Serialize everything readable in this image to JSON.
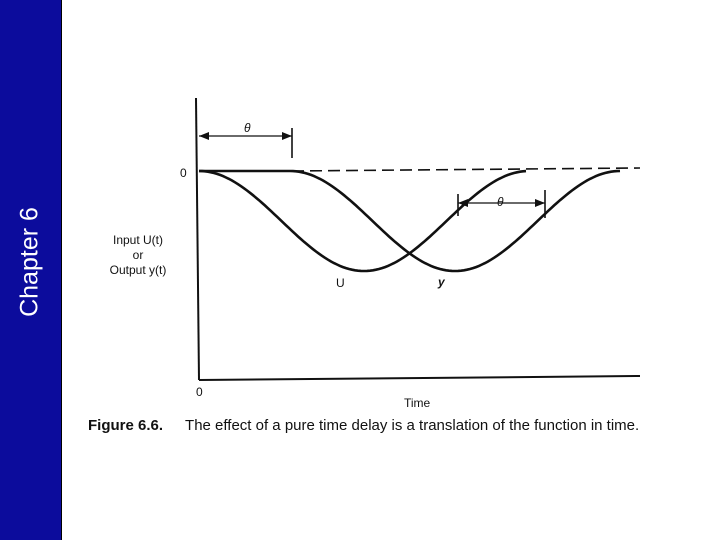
{
  "sidebar": {
    "title": "Chapter 6"
  },
  "figure": {
    "zero_top_label": "0",
    "zero_bottom_label": "0",
    "theta_label": "θ",
    "y_axis_label_line1": "Input U(t)",
    "y_axis_label_line2": "or",
    "y_axis_label_line3": "Output y(t)",
    "curve_u_label": "U",
    "curve_y_label": "y",
    "x_axis_label": "Time",
    "caption_number": "Figure 6.6.",
    "caption_text": "The effect of a pure time delay is a translation of the function in time.",
    "line_color": "#111111"
  }
}
